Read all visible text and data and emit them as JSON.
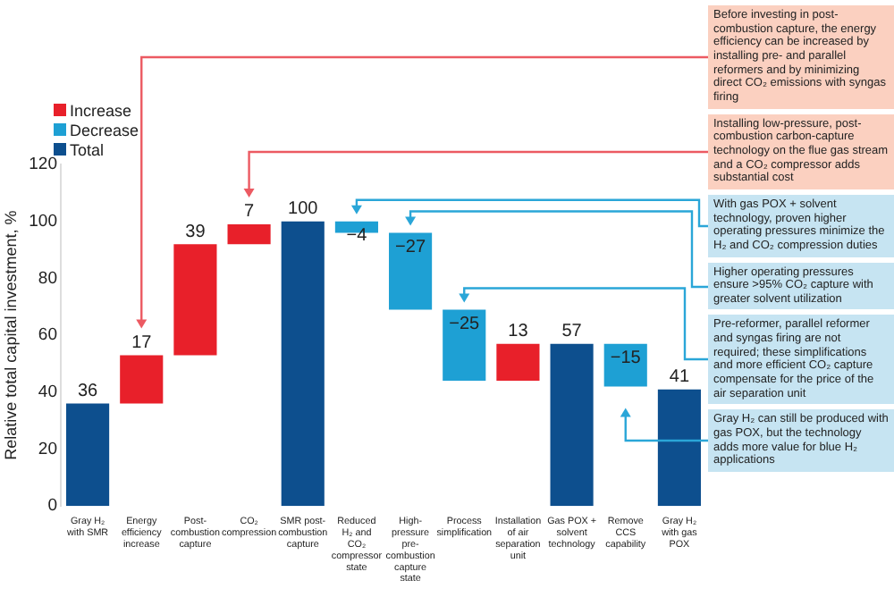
{
  "chart_data": {
    "type": "bar",
    "ylabel": "Relative total capital investment, %",
    "categories": [
      "Gray H₂ with SMR",
      "Energy efficiency increase",
      "Post-combustion capture",
      "CO₂ compression",
      "SMR post-combustion capture",
      "Reduced H₂ and CO₂ compressor state",
      "High-pressure pre-combustion capture state",
      "Process simplification",
      "Installation of air separation unit",
      "Gas POX + solvent technology",
      "Remove CCS capability",
      "Gray H₂ with gas POX"
    ],
    "series": [
      {
        "name": "Increase",
        "color": "#e8202a",
        "base": [
          null,
          36,
          53,
          92,
          null,
          null,
          null,
          null,
          44,
          null,
          null,
          null
        ],
        "values": [
          null,
          17,
          39,
          7,
          null,
          null,
          null,
          null,
          13,
          null,
          null,
          null
        ],
        "value_labels": [
          null,
          "17",
          "39",
          "7",
          null,
          null,
          null,
          null,
          "13",
          null,
          null,
          null
        ]
      },
      {
        "name": "Decrease",
        "color": "#1ea0d4",
        "base": [
          null,
          null,
          null,
          null,
          null,
          100,
          96,
          69,
          null,
          null,
          57,
          null
        ],
        "values": [
          null,
          null,
          null,
          null,
          null,
          -4,
          -27,
          -25,
          null,
          null,
          -15,
          null
        ],
        "value_labels": [
          null,
          null,
          null,
          null,
          null,
          "−4",
          "−27",
          "−25",
          null,
          null,
          "−15",
          null
        ]
      },
      {
        "name": "Total",
        "color": "#0d4f8e",
        "values": [
          36,
          null,
          null,
          null,
          100,
          null,
          null,
          null,
          null,
          57,
          null,
          41
        ],
        "value_labels": [
          "36",
          null,
          null,
          null,
          "100",
          null,
          null,
          null,
          null,
          "57",
          null,
          "41"
        ]
      }
    ],
    "ylim": [
      0,
      120
    ],
    "yticks": [
      0,
      20,
      40,
      60,
      80,
      100,
      120
    ],
    "grid": false,
    "legend": "top left",
    "annotations": [
      "Before investing in post-combustion capture, the energy efficiency can be increased by installing pre- and parallel reformers and by minimizing direct CO₂ emissions with syngas firing",
      "Installing low-pressure, post-combustion carbon-capture technology on the flue gas stream and a CO₂ compressor adds substantial cost",
      "With gas POX + solvent technology, proven higher operating pressures minimize the H₂ and CO₂ compression duties",
      "Higher operating pressures ensure >95% CO₂ capture with greater solvent utilization",
      "Pre-reformer, parallel reformer and syngas firing are not required; these simplifications and more efficient CO₂ capture compensate for the price of the air separation unit",
      "Gray H₂ can still be produced with gas POX, but the technology adds more value for blue H₂ applications"
    ]
  }
}
